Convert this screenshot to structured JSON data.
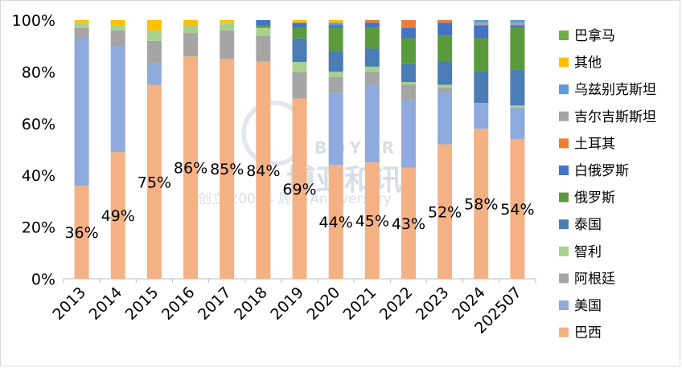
{
  "chart_data": {
    "type": "bar",
    "stacked": "percent",
    "categories": [
      "2013",
      "2014",
      "2015",
      "2016",
      "2017",
      "2018",
      "2019",
      "2020",
      "2021",
      "2022",
      "2023",
      "2024",
      "202507"
    ],
    "ylim": [
      0,
      100
    ],
    "y_ticks": [
      "0%",
      "20%",
      "40%",
      "60%",
      "80%",
      "100%"
    ],
    "grid": false,
    "legend_position": "right",
    "series": [
      {
        "name": "巴西",
        "color": "#f4b183",
        "values": [
          36,
          49,
          75,
          86,
          85,
          84,
          69,
          44,
          45,
          43,
          52,
          58,
          54
        ]
      },
      {
        "name": "美国",
        "color": "#8faadc",
        "values": [
          57,
          41,
          8,
          0,
          0,
          0,
          0,
          28,
          30,
          26,
          20,
          10,
          12
        ]
      },
      {
        "name": "阿根廷",
        "color": "#a5a5a5",
        "values": [
          4,
          6,
          9,
          9,
          11,
          10,
          10,
          6,
          5,
          6,
          2,
          0,
          0
        ]
      },
      {
        "name": "智利",
        "color": "#a9d18e",
        "values": [
          2,
          2,
          4,
          3,
          3,
          3,
          4,
          2,
          2,
          1,
          1,
          0,
          1
        ]
      },
      {
        "name": "泰国",
        "color": "#4a7db5",
        "values": [
          0,
          0,
          0,
          0,
          0,
          0,
          9,
          8,
          7,
          7,
          9,
          12,
          14
        ]
      },
      {
        "name": "俄罗斯",
        "color": "#5b9a3c",
        "values": [
          0,
          0,
          0,
          0,
          0,
          1,
          4,
          9,
          8,
          10,
          10,
          13,
          16
        ]
      },
      {
        "name": "白俄罗斯",
        "color": "#4472c4",
        "values": [
          0,
          0,
          0,
          0,
          0,
          2,
          2,
          1,
          2,
          4,
          5,
          5,
          1
        ]
      },
      {
        "name": "土耳其",
        "color": "#ed7d31",
        "values": [
          0,
          0,
          0,
          0,
          0,
          0,
          0,
          0,
          1,
          3,
          1,
          0,
          0
        ]
      },
      {
        "name": "吉尔吉斯斯坦",
        "color": "#a5a5a5",
        "values": [
          0,
          0,
          0,
          0,
          0,
          0,
          0,
          0,
          0,
          0,
          0,
          1,
          1
        ]
      },
      {
        "name": "乌兹别克斯坦",
        "color": "#5b9bd5",
        "values": [
          0,
          0,
          0,
          0,
          0,
          0,
          0,
          1,
          0,
          0,
          0,
          1,
          1
        ]
      },
      {
        "name": "其他",
        "color": "#ffc000",
        "values": [
          1,
          2,
          4,
          2,
          1,
          0,
          1,
          1,
          0,
          0,
          0,
          0,
          0
        ]
      },
      {
        "name": "巴拿马",
        "color": "#70ad47",
        "values": [
          0,
          0,
          0,
          0,
          0,
          0,
          0,
          0,
          0,
          0,
          0,
          0,
          0
        ]
      }
    ],
    "data_labels": {
      "series": "巴西",
      "text": [
        "36%",
        "49%",
        "75%",
        "86%",
        "85%",
        "84%",
        "69%",
        "44%",
        "45%",
        "43%",
        "52%",
        "58%",
        "54%"
      ]
    },
    "legend_order": [
      "巴拿马",
      "其他",
      "乌兹别克斯坦",
      "吉尔吉斯斯坦",
      "土耳其",
      "白俄罗斯",
      "俄罗斯",
      "泰国",
      "智利",
      "阿根廷",
      "美国",
      "巴西"
    ]
  },
  "watermark": {
    "brand_latin": "BOYAR",
    "brand_cn": "博亚和讯",
    "tagline": "创立 200 年 周年 Anniversary"
  }
}
